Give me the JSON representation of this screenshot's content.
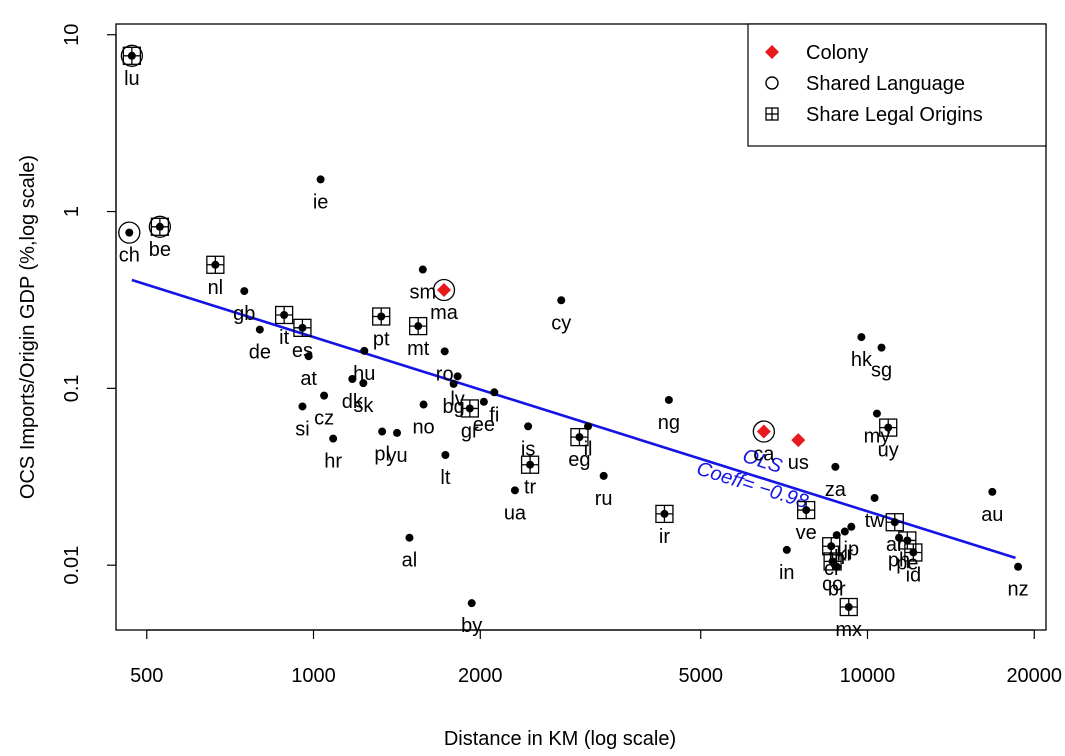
{
  "chart_data": {
    "type": "scatter",
    "xlabel": "Distance in KM (log scale)",
    "ylabel": "OCS Imports/Origin GDP (%,log scale)",
    "x_scale": "log",
    "y_scale": "log",
    "xlim": [
      440,
      21000
    ],
    "ylim": [
      0.0043,
      11.5
    ],
    "x_ticks": [
      {
        "value": 500,
        "label": "500"
      },
      {
        "value": 1000,
        "label": "1000"
      },
      {
        "value": 2000,
        "label": "2000"
      },
      {
        "value": 5000,
        "label": "5000"
      },
      {
        "value": 10000,
        "label": "10000"
      },
      {
        "value": 20000,
        "label": "20000"
      }
    ],
    "y_ticks": [
      {
        "value": 0.01,
        "label": "0.01"
      },
      {
        "value": 0.1,
        "label": "0.1"
      },
      {
        "value": 1,
        "label": "1"
      },
      {
        "value": 10,
        "label": "10"
      }
    ],
    "legend": {
      "position": "top-right",
      "items": [
        {
          "label": "Colony",
          "symbol": "diamond",
          "color": "#e8191c"
        },
        {
          "label": "Shared Language",
          "symbol": "circle-open",
          "color": "#000000"
        },
        {
          "label": "Share Legal Origins",
          "symbol": "square-plus",
          "color": "#000000"
        }
      ]
    },
    "fit_line": {
      "label": "OLS",
      "coef_label": "Coeff= −0.98",
      "color": "#1414e6",
      "x": [
        470,
        18500
      ],
      "y": [
        0.41,
        0.011
      ]
    },
    "points": [
      {
        "code": "lu",
        "x": 470,
        "y": 7.6,
        "lang": true,
        "legal": true
      },
      {
        "code": "ch",
        "x": 465,
        "y": 0.76,
        "lang": true
      },
      {
        "code": "be",
        "x": 528,
        "y": 0.82,
        "lang": true,
        "legal": true
      },
      {
        "code": "nl",
        "x": 665,
        "y": 0.5,
        "legal": true
      },
      {
        "code": "gb",
        "x": 750,
        "y": 0.355
      },
      {
        "code": "de",
        "x": 800,
        "y": 0.215
      },
      {
        "code": "it",
        "x": 885,
        "y": 0.26,
        "legal": true
      },
      {
        "code": "es",
        "x": 955,
        "y": 0.22,
        "legal": true
      },
      {
        "code": "at",
        "x": 980,
        "y": 0.152
      },
      {
        "code": "ie",
        "x": 1030,
        "y": 1.52
      },
      {
        "code": "si",
        "x": 955,
        "y": 0.079
      },
      {
        "code": "cz",
        "x": 1045,
        "y": 0.091
      },
      {
        "code": "hr",
        "x": 1085,
        "y": 0.052
      },
      {
        "code": "hu",
        "x": 1235,
        "y": 0.163
      },
      {
        "code": "dk",
        "x": 1175,
        "y": 0.113
      },
      {
        "code": "sk",
        "x": 1230,
        "y": 0.107
      },
      {
        "code": "pt",
        "x": 1325,
        "y": 0.255,
        "legal": true
      },
      {
        "code": "pl",
        "x": 1330,
        "y": 0.057
      },
      {
        "code": "yu",
        "x": 1415,
        "y": 0.056
      },
      {
        "code": "mt",
        "x": 1545,
        "y": 0.225,
        "legal": true
      },
      {
        "code": "no",
        "x": 1580,
        "y": 0.081
      },
      {
        "code": "sm",
        "x": 1575,
        "y": 0.47
      },
      {
        "code": "ma",
        "x": 1720,
        "y": 0.36,
        "colony": true,
        "lang": true
      },
      {
        "code": "ro",
        "x": 1725,
        "y": 0.162
      },
      {
        "code": "bg",
        "x": 1790,
        "y": 0.106
      },
      {
        "code": "lv",
        "x": 1820,
        "y": 0.117
      },
      {
        "code": "lt",
        "x": 1730,
        "y": 0.042
      },
      {
        "code": "gr",
        "x": 1915,
        "y": 0.077,
        "legal": true
      },
      {
        "code": "ee",
        "x": 2030,
        "y": 0.084
      },
      {
        "code": "fi",
        "x": 2120,
        "y": 0.095
      },
      {
        "code": "al",
        "x": 1490,
        "y": 0.0143
      },
      {
        "code": "by",
        "x": 1930,
        "y": 0.0061
      },
      {
        "code": "cy",
        "x": 2800,
        "y": 0.315
      },
      {
        "code": "is",
        "x": 2440,
        "y": 0.061
      },
      {
        "code": "tr",
        "x": 2460,
        "y": 0.037,
        "legal": true
      },
      {
        "code": "ua",
        "x": 2310,
        "y": 0.0265
      },
      {
        "code": "il",
        "x": 3130,
        "y": 0.061
      },
      {
        "code": "eg",
        "x": 3020,
        "y": 0.053,
        "legal": true
      },
      {
        "code": "ru",
        "x": 3340,
        "y": 0.032
      },
      {
        "code": "ng",
        "x": 4380,
        "y": 0.086
      },
      {
        "code": "ir",
        "x": 4300,
        "y": 0.0195,
        "legal": true
      },
      {
        "code": "ca",
        "x": 6500,
        "y": 0.057,
        "colony": true,
        "lang": true
      },
      {
        "code": "us",
        "x": 7500,
        "y": 0.051,
        "colony": true
      },
      {
        "code": "ve",
        "x": 7750,
        "y": 0.0205,
        "legal": true
      },
      {
        "code": "in",
        "x": 7150,
        "y": 0.0122
      },
      {
        "code": "za",
        "x": 8750,
        "y": 0.036
      },
      {
        "code": "hk",
        "x": 9750,
        "y": 0.195
      },
      {
        "code": "sg",
        "x": 10600,
        "y": 0.17
      },
      {
        "code": "my",
        "x": 10400,
        "y": 0.072
      },
      {
        "code": "uy",
        "x": 10900,
        "y": 0.06,
        "legal": true
      },
      {
        "code": "tw",
        "x": 10300,
        "y": 0.024
      },
      {
        "code": "jp",
        "x": 9350,
        "y": 0.0165
      },
      {
        "code": "kr",
        "x": 9100,
        "y": 0.0155
      },
      {
        "code": "th",
        "x": 8800,
        "y": 0.0148
      },
      {
        "code": "cl",
        "x": 8600,
        "y": 0.0128,
        "legal": true
      },
      {
        "code": "co",
        "x": 8650,
        "y": 0.0105,
        "legal": true
      },
      {
        "code": "br",
        "x": 8800,
        "y": 0.0098
      },
      {
        "code": "mx",
        "x": 9250,
        "y": 0.0058,
        "legal": true
      },
      {
        "code": "ar",
        "x": 11200,
        "y": 0.0175,
        "legal": true
      },
      {
        "code": "ph",
        "x": 11400,
        "y": 0.0143
      },
      {
        "code": "pe",
        "x": 11800,
        "y": 0.0138,
        "legal": true
      },
      {
        "code": "id",
        "x": 12100,
        "y": 0.0118,
        "legal": true
      },
      {
        "code": "au",
        "x": 16800,
        "y": 0.026
      },
      {
        "code": "nz",
        "x": 18700,
        "y": 0.0098
      }
    ]
  }
}
